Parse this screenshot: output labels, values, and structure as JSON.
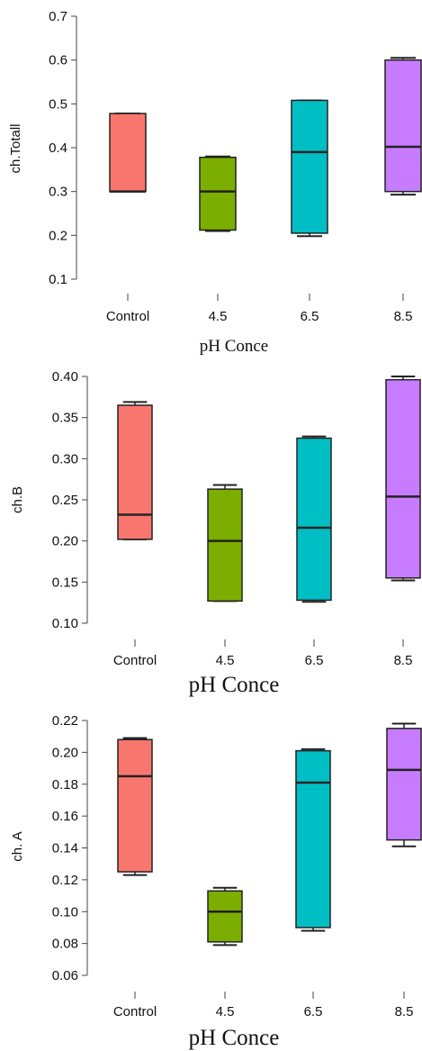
{
  "chart_data": [
    {
      "type": "box",
      "xlabel": "pH Conce",
      "ylabel": "ch.Totall",
      "ylim": [
        0.1,
        0.7
      ],
      "yticks": [
        "0.1",
        "0.2",
        "0.3",
        "0.4",
        "0.5",
        "0.6",
        "0.7"
      ],
      "categories": [
        "Control",
        "4.5",
        "6.5",
        "8.5"
      ],
      "colors": [
        "#f8766d",
        "#7cae00",
        "#00bfc4",
        "#c77cff"
      ],
      "boxes": [
        {
          "min": 0.3,
          "q1": 0.3,
          "median": 0.3,
          "q3": 0.478,
          "max": 0.478
        },
        {
          "min": 0.21,
          "q1": 0.212,
          "median": 0.3,
          "q3": 0.378,
          "max": 0.38
        },
        {
          "min": 0.198,
          "q1": 0.205,
          "median": 0.39,
          "q3": 0.508,
          "max": 0.508
        },
        {
          "min": 0.293,
          "q1": 0.3,
          "median": 0.402,
          "q3": 0.6,
          "max": 0.605
        }
      ]
    },
    {
      "type": "box",
      "xlabel": "pH Conce",
      "ylabel": "ch.B",
      "ylim": [
        0.1,
        0.4
      ],
      "yticks": [
        "0.10",
        "0.15",
        "0.20",
        "0.25",
        "0.30",
        "0.35",
        "0.40"
      ],
      "categories": [
        "Control",
        "4.5",
        "6.5",
        "8.5"
      ],
      "colors": [
        "#f8766d",
        "#7cae00",
        "#00bfc4",
        "#c77cff"
      ],
      "boxes": [
        {
          "min": 0.202,
          "q1": 0.202,
          "median": 0.232,
          "q3": 0.365,
          "max": 0.369
        },
        {
          "min": 0.127,
          "q1": 0.127,
          "median": 0.2,
          "q3": 0.263,
          "max": 0.268
        },
        {
          "min": 0.126,
          "q1": 0.128,
          "median": 0.216,
          "q3": 0.325,
          "max": 0.327
        },
        {
          "min": 0.152,
          "q1": 0.155,
          "median": 0.254,
          "q3": 0.396,
          "max": 0.4
        }
      ]
    },
    {
      "type": "box",
      "xlabel": "pH Conce",
      "ylabel": "ch. A",
      "ylim": [
        0.06,
        0.22
      ],
      "yticks": [
        "0.06",
        "0.08",
        "0.10",
        "0.12",
        "0.14",
        "0.16",
        "0.18",
        "0.20",
        "0.22"
      ],
      "categories": [
        "Control",
        "4.5",
        "6.5",
        "8.5"
      ],
      "colors": [
        "#f8766d",
        "#7cae00",
        "#00bfc4",
        "#c77cff"
      ],
      "boxes": [
        {
          "min": 0.123,
          "q1": 0.125,
          "median": 0.185,
          "q3": 0.208,
          "max": 0.209
        },
        {
          "min": 0.079,
          "q1": 0.081,
          "median": 0.1,
          "q3": 0.113,
          "max": 0.115
        },
        {
          "min": 0.088,
          "q1": 0.09,
          "median": 0.181,
          "q3": 0.201,
          "max": 0.202
        },
        {
          "min": 0.141,
          "q1": 0.145,
          "median": 0.189,
          "q3": 0.215,
          "max": 0.218
        }
      ]
    }
  ]
}
